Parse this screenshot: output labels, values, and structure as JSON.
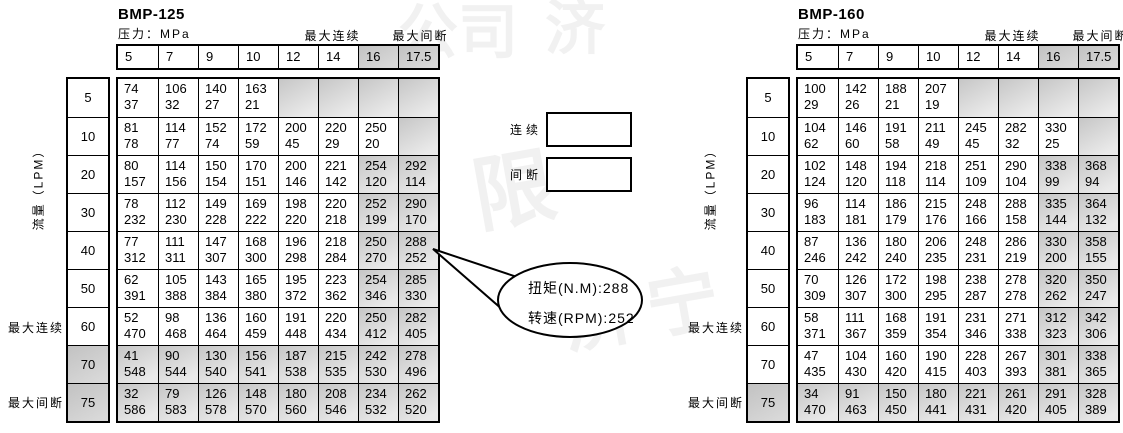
{
  "legend": {
    "continuous_label": "连续",
    "intermittent_label": "间断"
  },
  "callout": {
    "line1": "扭矩(N.M):288",
    "line2": "转速(RPM):252"
  },
  "colors": {
    "border": "#000000",
    "intermittent_start": "#c6c6c6",
    "intermittent_end": "#eaeaea"
  },
  "watermarks": [
    "公司",
    "济",
    "液压有限",
    "济宁"
  ],
  "tables": [
    {
      "id": "bmp125",
      "title": "BMP-125",
      "pressure_label": "压力：MPa",
      "max_continuous_label": "最大连续",
      "max_intermittent_label": "最大间断",
      "flow_label": "流量（LPM）",
      "row_max_continuous_label": "最大连续",
      "row_max_intermittent_label": "最大间断",
      "pressure_columns": [
        "5",
        "7",
        "9",
        "10",
        "12",
        "14",
        "16",
        "17.5"
      ],
      "gray_columns": [
        "16",
        "17.5"
      ],
      "flow_rows": [
        "5",
        "10",
        "20",
        "30",
        "40",
        "50",
        "60",
        "70",
        "75"
      ],
      "gray_rows": [
        "70",
        "75"
      ],
      "cell_format": "[torque N.m, speed RPM, zone c=continuous i=intermittent], null = empty intermittent cell",
      "cells": [
        [
          [
            74,
            37,
            "c"
          ],
          [
            106,
            32,
            "c"
          ],
          [
            140,
            27,
            "c"
          ],
          [
            163,
            21,
            "c"
          ],
          null,
          null,
          null,
          null
        ],
        [
          [
            81,
            78,
            "c"
          ],
          [
            114,
            77,
            "c"
          ],
          [
            152,
            74,
            "c"
          ],
          [
            172,
            59,
            "c"
          ],
          [
            200,
            45,
            "c"
          ],
          [
            220,
            29,
            "c"
          ],
          [
            250,
            20,
            "c"
          ],
          null
        ],
        [
          [
            80,
            157,
            "c"
          ],
          [
            114,
            156,
            "c"
          ],
          [
            150,
            154,
            "c"
          ],
          [
            170,
            151,
            "c"
          ],
          [
            200,
            146,
            "c"
          ],
          [
            221,
            142,
            "c"
          ],
          [
            254,
            120,
            "i"
          ],
          [
            292,
            114,
            "i"
          ]
        ],
        [
          [
            78,
            232,
            "c"
          ],
          [
            112,
            230,
            "c"
          ],
          [
            149,
            228,
            "c"
          ],
          [
            169,
            222,
            "c"
          ],
          [
            198,
            220,
            "c"
          ],
          [
            220,
            218,
            "c"
          ],
          [
            252,
            199,
            "i"
          ],
          [
            290,
            170,
            "i"
          ]
        ],
        [
          [
            77,
            312,
            "c"
          ],
          [
            111,
            311,
            "c"
          ],
          [
            147,
            307,
            "c"
          ],
          [
            168,
            300,
            "c"
          ],
          [
            196,
            298,
            "c"
          ],
          [
            218,
            284,
            "c"
          ],
          [
            250,
            270,
            "i"
          ],
          [
            288,
            252,
            "i"
          ]
        ],
        [
          [
            62,
            391,
            "c"
          ],
          [
            105,
            388,
            "c"
          ],
          [
            143,
            384,
            "c"
          ],
          [
            165,
            380,
            "c"
          ],
          [
            195,
            372,
            "c"
          ],
          [
            223,
            362,
            "c"
          ],
          [
            254,
            346,
            "i"
          ],
          [
            285,
            330,
            "i"
          ]
        ],
        [
          [
            52,
            470,
            "c"
          ],
          [
            98,
            468,
            "c"
          ],
          [
            136,
            464,
            "c"
          ],
          [
            160,
            459,
            "c"
          ],
          [
            191,
            448,
            "c"
          ],
          [
            220,
            434,
            "c"
          ],
          [
            250,
            412,
            "i"
          ],
          [
            282,
            405,
            "i"
          ]
        ],
        [
          [
            41,
            548,
            "i"
          ],
          [
            90,
            544,
            "i"
          ],
          [
            130,
            540,
            "i"
          ],
          [
            156,
            541,
            "i"
          ],
          [
            187,
            538,
            "i"
          ],
          [
            215,
            535,
            "i"
          ],
          [
            242,
            530,
            "i"
          ],
          [
            278,
            496,
            "i"
          ]
        ],
        [
          [
            32,
            586,
            "i"
          ],
          [
            79,
            583,
            "i"
          ],
          [
            126,
            578,
            "i"
          ],
          [
            148,
            570,
            "i"
          ],
          [
            180,
            560,
            "i"
          ],
          [
            208,
            546,
            "i"
          ],
          [
            234,
            532,
            "i"
          ],
          [
            262,
            520,
            "i"
          ]
        ]
      ]
    },
    {
      "id": "bmp160",
      "title": "BMP-160",
      "pressure_label": "压力：MPa",
      "max_continuous_label": "最大连续",
      "max_intermittent_label": "最大间断",
      "flow_label": "流量（LPM）",
      "row_max_continuous_label": "最大连续",
      "row_max_intermittent_label": "最大间断",
      "pressure_columns": [
        "5",
        "7",
        "9",
        "10",
        "12",
        "14",
        "16",
        "17.5"
      ],
      "gray_columns": [
        "16",
        "17.5"
      ],
      "flow_rows": [
        "5",
        "10",
        "20",
        "30",
        "40",
        "50",
        "60",
        "70",
        "75"
      ],
      "gray_rows": [
        "75"
      ],
      "cell_format": "[torque N.m, speed RPM, zone c=continuous i=intermittent], null = empty intermittent cell",
      "cells": [
        [
          [
            100,
            29,
            "c"
          ],
          [
            142,
            26,
            "c"
          ],
          [
            188,
            21,
            "c"
          ],
          [
            207,
            19,
            "c"
          ],
          null,
          null,
          null,
          null
        ],
        [
          [
            104,
            62,
            "c"
          ],
          [
            146,
            60,
            "c"
          ],
          [
            191,
            58,
            "c"
          ],
          [
            211,
            49,
            "c"
          ],
          [
            245,
            45,
            "c"
          ],
          [
            282,
            32,
            "c"
          ],
          [
            330,
            25,
            "c"
          ],
          null
        ],
        [
          [
            102,
            124,
            "c"
          ],
          [
            148,
            120,
            "c"
          ],
          [
            194,
            118,
            "c"
          ],
          [
            218,
            114,
            "c"
          ],
          [
            251,
            109,
            "c"
          ],
          [
            290,
            104,
            "c"
          ],
          [
            338,
            99,
            "i"
          ],
          [
            368,
            94,
            "i"
          ]
        ],
        [
          [
            96,
            183,
            "c"
          ],
          [
            114,
            181,
            "c"
          ],
          [
            186,
            179,
            "c"
          ],
          [
            215,
            176,
            "c"
          ],
          [
            248,
            166,
            "c"
          ],
          [
            288,
            158,
            "c"
          ],
          [
            335,
            144,
            "i"
          ],
          [
            364,
            132,
            "i"
          ]
        ],
        [
          [
            87,
            246,
            "c"
          ],
          [
            136,
            242,
            "c"
          ],
          [
            180,
            240,
            "c"
          ],
          [
            206,
            235,
            "c"
          ],
          [
            248,
            231,
            "c"
          ],
          [
            286,
            219,
            "c"
          ],
          [
            330,
            200,
            "i"
          ],
          [
            358,
            155,
            "i"
          ]
        ],
        [
          [
            70,
            309,
            "c"
          ],
          [
            126,
            307,
            "c"
          ],
          [
            172,
            300,
            "c"
          ],
          [
            198,
            295,
            "c"
          ],
          [
            238,
            287,
            "c"
          ],
          [
            278,
            278,
            "c"
          ],
          [
            320,
            262,
            "i"
          ],
          [
            350,
            247,
            "i"
          ]
        ],
        [
          [
            58,
            371,
            "c"
          ],
          [
            111,
            367,
            "c"
          ],
          [
            168,
            359,
            "c"
          ],
          [
            191,
            354,
            "c"
          ],
          [
            231,
            346,
            "c"
          ],
          [
            271,
            338,
            "c"
          ],
          [
            312,
            323,
            "i"
          ],
          [
            342,
            306,
            "i"
          ]
        ],
        [
          [
            47,
            435,
            "c"
          ],
          [
            104,
            430,
            "c"
          ],
          [
            160,
            420,
            "c"
          ],
          [
            190,
            415,
            "c"
          ],
          [
            228,
            403,
            "c"
          ],
          [
            267,
            393,
            "c"
          ],
          [
            301,
            381,
            "i"
          ],
          [
            338,
            365,
            "i"
          ]
        ],
        [
          [
            34,
            470,
            "i"
          ],
          [
            91,
            463,
            "i"
          ],
          [
            150,
            450,
            "i"
          ],
          [
            180,
            441,
            "i"
          ],
          [
            221,
            431,
            "i"
          ],
          [
            261,
            420,
            "i"
          ],
          [
            291,
            405,
            "i"
          ],
          [
            328,
            389,
            "i"
          ]
        ]
      ]
    }
  ]
}
